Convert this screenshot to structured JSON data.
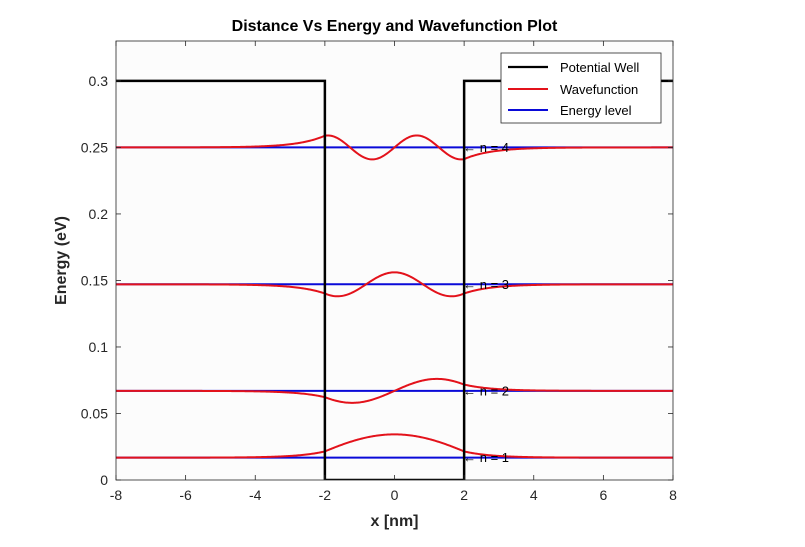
{
  "chart_data": {
    "type": "line",
    "title": "Distance Vs Energy and Wavefunction Plot",
    "xlabel": "x [nm]",
    "ylabel": "Energy  (eV)",
    "xlim": [
      -8,
      8
    ],
    "ylim": [
      0,
      0.33
    ],
    "x_ticks": [
      -8,
      -6,
      -4,
      -2,
      0,
      2,
      4,
      6,
      8
    ],
    "x_tick_labels": [
      "-8",
      "-6",
      "-4",
      "-2",
      "0",
      "2",
      "4",
      "6",
      "8"
    ],
    "y_ticks": [
      0,
      0.05,
      0.1,
      0.15,
      0.2,
      0.25,
      0.3
    ],
    "y_tick_labels": [
      "0",
      "0.05",
      "0.1",
      "0.15",
      "0.2",
      "0.25",
      "0.3"
    ],
    "grid": false,
    "legend": {
      "position": "top-right",
      "entries": [
        {
          "name": "Potential Well",
          "color": "#000000"
        },
        {
          "name": "Wavefunction",
          "color": "#e3121b"
        },
        {
          "name": "Energy level",
          "color": "#0a0ad8"
        }
      ]
    },
    "potential_well": {
      "name": "Potential Well",
      "color": "#000000",
      "x": [
        -8,
        -2,
        -2,
        2,
        2,
        8
      ],
      "y": [
        0.3,
        0.3,
        0,
        0,
        0.3,
        0.3
      ]
    },
    "energy_levels": {
      "name": "Energy level",
      "color": "#0a0ad8",
      "values": [
        0.0168,
        0.067,
        0.1471,
        0.25
      ]
    },
    "wavefunctions": {
      "name": "Wavefunction",
      "color": "#e3121b",
      "well_half_width": 2,
      "decay": 1.3,
      "states": [
        {
          "n": 1,
          "energy": 0.0168,
          "amplitude": 0.0175,
          "k": 0.6498,
          "type": "even"
        },
        {
          "n": 2,
          "energy": 0.067,
          "amplitude": 0.009,
          "k": 1.292,
          "type": "odd"
        },
        {
          "n": 3,
          "energy": 0.1471,
          "amplitude": 0.009,
          "k": 1.92,
          "type": "even"
        },
        {
          "n": 4,
          "energy": 0.25,
          "amplitude": 0.009,
          "k": 2.46,
          "type": "odd"
        }
      ]
    },
    "annotations": [
      {
        "text": "← n = 1",
        "x": 2,
        "y": 0.0168
      },
      {
        "text": "← n = 2",
        "x": 2,
        "y": 0.067
      },
      {
        "text": "← n = 3",
        "x": 2,
        "y": 0.1471
      },
      {
        "text": "← n = 4",
        "x": 2,
        "y": 0.25
      }
    ]
  }
}
